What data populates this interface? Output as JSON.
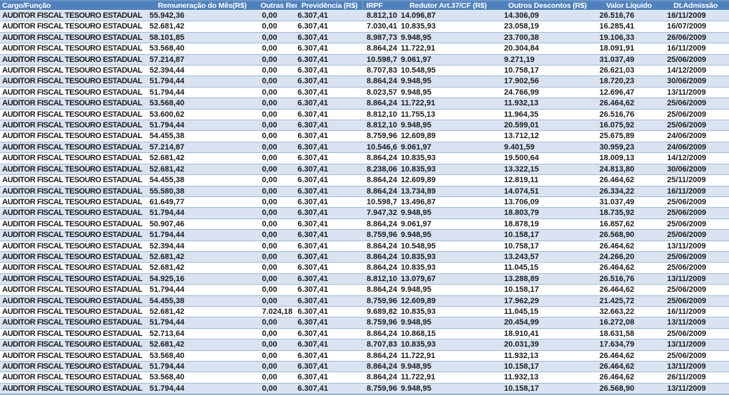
{
  "colors": {
    "header_bg": "#4F81BD",
    "header_top_highlight": "#6A94C8",
    "header_text": "#FFFFFF",
    "band_row_bg": "#D9E3F1",
    "plain_row_bg": "#FFFFFF",
    "row_border": "#A0B9DC",
    "table_bottom_border": "#8FAFD4",
    "body_text": "#1B1B1B"
  },
  "table": {
    "columns": [
      {
        "label": "Cargo/Função"
      },
      {
        "label": "Remuneração do Mês(R$)"
      },
      {
        "label": "Outras Rer"
      },
      {
        "label": "Previdência (R$)"
      },
      {
        "label": "IRPF"
      },
      {
        "label": "Redutor Art.37/CF (R$)"
      },
      {
        "label": "Outros Descontos (R$)"
      },
      {
        "label": "Valor Líquido"
      },
      {
        "label": "Dt.Admissão"
      }
    ],
    "rows": [
      [
        "AUDITOR FISCAL TESOURO ESTADUAL",
        "55.942,36",
        "0,00",
        "6.307,41",
        "8.812,10",
        "14.096,87",
        "14.306,09",
        "26.516,76",
        "16/11/2009"
      ],
      [
        "AUDITOR FISCAL TESOURO ESTADUAL",
        "52.681,42",
        "0,00",
        "6.307,41",
        "7.030,41",
        "10.835,93",
        "23.058,19",
        "16.285,41",
        "16/07/2009"
      ],
      [
        "AUDITOR FISCAL TESOURO ESTADUAL",
        "58.101,85",
        "0,00",
        "6.307,41",
        "8.987,73",
        "9.948,95",
        "23.700,38",
        "19.106,33",
        "26/06/2009"
      ],
      [
        "AUDITOR FISCAL TESOURO ESTADUAL",
        "53.568,40",
        "0,00",
        "6.307,41",
        "8.864,24",
        "11.722,91",
        "20.304,84",
        "18.091,91",
        "16/11/2009"
      ],
      [
        "AUDITOR FISCAL TESOURO ESTADUAL",
        "57.214,87",
        "0,00",
        "6.307,41",
        "10.598,78",
        "9.061,97",
        "9.271,19",
        "31.037,49",
        "25/06/2009"
      ],
      [
        "AUDITOR FISCAL TESOURO ESTADUAL",
        "52.394,44",
        "0,00",
        "6.307,41",
        "8.707,83",
        "10.548,95",
        "10.758,17",
        "26.621,03",
        "14/12/2009"
      ],
      [
        "AUDITOR FISCAL TESOURO ESTADUAL",
        "51.794,44",
        "0,00",
        "6.307,41",
        "8.864,24",
        "9.948,95",
        "17.902,56",
        "18.720,23",
        "30/06/2009"
      ],
      [
        "AUDITOR FISCAL TESOURO ESTADUAL",
        "51.794,44",
        "0,00",
        "6.307,41",
        "8.023,57",
        "9.948,95",
        "24.766,99",
        "12.696,47",
        "13/11/2009"
      ],
      [
        "AUDITOR FISCAL TESOURO ESTADUAL",
        "53.568,40",
        "0,00",
        "6.307,41",
        "8.864,24",
        "11.722,91",
        "11.932,13",
        "26.464,62",
        "25/06/2009"
      ],
      [
        "AUDITOR FISCAL TESOURO ESTADUAL",
        "53.600,62",
        "0,00",
        "6.307,41",
        "8.812,10",
        "11.755,13",
        "11.964,35",
        "26.516,76",
        "25/06/2009"
      ],
      [
        "AUDITOR FISCAL TESOURO ESTADUAL",
        "51.794,44",
        "0,00",
        "6.307,41",
        "8.812,10",
        "9.948,95",
        "20.599,01",
        "16.075,92",
        "25/06/2009"
      ],
      [
        "AUDITOR FISCAL TESOURO ESTADUAL",
        "54.455,38",
        "0,00",
        "6.307,41",
        "8.759,96",
        "12.609,89",
        "13.712,12",
        "25.675,89",
        "24/06/2009"
      ],
      [
        "AUDITOR FISCAL TESOURO ESTADUAL",
        "57.214,87",
        "0,00",
        "6.307,41",
        "10.546,64",
        "9.061,97",
        "9.401,59",
        "30.959,23",
        "24/06/2009"
      ],
      [
        "AUDITOR FISCAL TESOURO ESTADUAL",
        "52.681,42",
        "0,00",
        "6.307,41",
        "8.864,24",
        "10.835,93",
        "19.500,64",
        "18.009,13",
        "14/12/2009"
      ],
      [
        "AUDITOR FISCAL TESOURO ESTADUAL",
        "52.681,42",
        "0,00",
        "6.307,41",
        "8.238,06",
        "10.835,93",
        "13.322,15",
        "24.813,80",
        "30/06/2009"
      ],
      [
        "AUDITOR FISCAL TESOURO ESTADUAL",
        "54.455,38",
        "0,00",
        "6.307,41",
        "8.864,24",
        "12.609,89",
        "12.819,11",
        "26.464,62",
        "25/11/2009"
      ],
      [
        "AUDITOR FISCAL TESOURO ESTADUAL",
        "55.580,38",
        "0,00",
        "6.307,41",
        "8.864,24",
        "13.734,89",
        "14.074,51",
        "26.334,22",
        "16/11/2009"
      ],
      [
        "AUDITOR FISCAL TESOURO ESTADUAL",
        "61.649,77",
        "0,00",
        "6.307,41",
        "10.598,78",
        "13.496,87",
        "13.706,09",
        "31.037,49",
        "25/06/2009"
      ],
      [
        "AUDITOR FISCAL TESOURO ESTADUAL",
        "51.794,44",
        "0,00",
        "6.307,41",
        "7.947,32",
        "9.948,95",
        "18.803,79",
        "18.735,92",
        "25/06/2009"
      ],
      [
        "AUDITOR FISCAL TESOURO ESTADUAL",
        "50.907,46",
        "0,00",
        "6.307,41",
        "8.864,24",
        "9.061,97",
        "18.878,19",
        "16.857,62",
        "25/06/2009"
      ],
      [
        "AUDITOR FISCAL TESOURO ESTADUAL",
        "51.794,44",
        "0,00",
        "6.307,41",
        "8.759,96",
        "9.948,95",
        "10.158,17",
        "26.568,90",
        "25/06/2009"
      ],
      [
        "AUDITOR FISCAL TESOURO ESTADUAL",
        "52.394,44",
        "0,00",
        "6.307,41",
        "8.864,24",
        "10.548,95",
        "10.758,17",
        "26.464,62",
        "13/11/2009"
      ],
      [
        "AUDITOR FISCAL TESOURO ESTADUAL",
        "52.681,42",
        "0,00",
        "6.307,41",
        "8.864,24",
        "10.835,93",
        "13.243,57",
        "24.266,20",
        "25/06/2009"
      ],
      [
        "AUDITOR FISCAL TESOURO ESTADUAL",
        "52.681,42",
        "0,00",
        "6.307,41",
        "8.864,24",
        "10.835,93",
        "11.045,15",
        "26.464,62",
        "25/06/2009"
      ],
      [
        "AUDITOR FISCAL TESOURO ESTADUAL",
        "54.925,16",
        "0,00",
        "6.307,41",
        "8.812,10",
        "13.079,67",
        "13.288,89",
        "26.516,76",
        "13/11/2009"
      ],
      [
        "AUDITOR FISCAL TESOURO ESTADUAL",
        "51.794,44",
        "0,00",
        "6.307,41",
        "8.864,24",
        "9.948,95",
        "10.158,17",
        "26.464,62",
        "25/06/2009"
      ],
      [
        "AUDITOR FISCAL TESOURO ESTADUAL",
        "54.455,38",
        "0,00",
        "6.307,41",
        "8.759,96",
        "12.609,89",
        "17.962,29",
        "21.425,72",
        "25/06/2009"
      ],
      [
        "AUDITOR FISCAL TESOURO ESTADUAL",
        "52.681,42",
        "7.024,18",
        "6.307,41",
        "9.689,82",
        "10.835,93",
        "11.045,15",
        "32.663,22",
        "16/11/2009"
      ],
      [
        "AUDITOR FISCAL TESOURO ESTADUAL",
        "51.794,44",
        "0,00",
        "6.307,41",
        "8.759,96",
        "9.948,95",
        "20.454,99",
        "16.272,08",
        "13/11/2009"
      ],
      [
        "AUDITOR FISCAL TESOURO ESTADUAL",
        "52.713,64",
        "0,00",
        "6.307,41",
        "8.864,24",
        "10.868,15",
        "18.910,41",
        "18.631,58",
        "25/06/2009"
      ],
      [
        "AUDITOR FISCAL TESOURO ESTADUAL",
        "52.681,42",
        "0,00",
        "6.307,41",
        "8.707,83",
        "10.835,93",
        "20.031,39",
        "17.634,79",
        "13/11/2009"
      ],
      [
        "AUDITOR FISCAL TESOURO ESTADUAL",
        "53.568,40",
        "0,00",
        "6.307,41",
        "8.864,24",
        "11.722,91",
        "11.932,13",
        "26.464,62",
        "25/06/2009"
      ],
      [
        "AUDITOR FISCAL TESOURO ESTADUAL",
        "51.794,44",
        "0,00",
        "6.307,41",
        "8.864,24",
        "9.948,95",
        "10.158,17",
        "26.464,62",
        "13/11/2009"
      ],
      [
        "AUDITOR FISCAL TESOURO ESTADUAL",
        "53.568,40",
        "0,00",
        "6.307,41",
        "8.864,24",
        "11.722,91",
        "11.932,13",
        "26.464,62",
        "26/11/2009"
      ],
      [
        "AUDITOR FISCAL TESOURO ESTADUAL",
        "51.794,44",
        "0,00",
        "6.307,41",
        "8.759,96",
        "9.948,95",
        "10.158,17",
        "26.568,90",
        "13/11/2009"
      ]
    ]
  }
}
